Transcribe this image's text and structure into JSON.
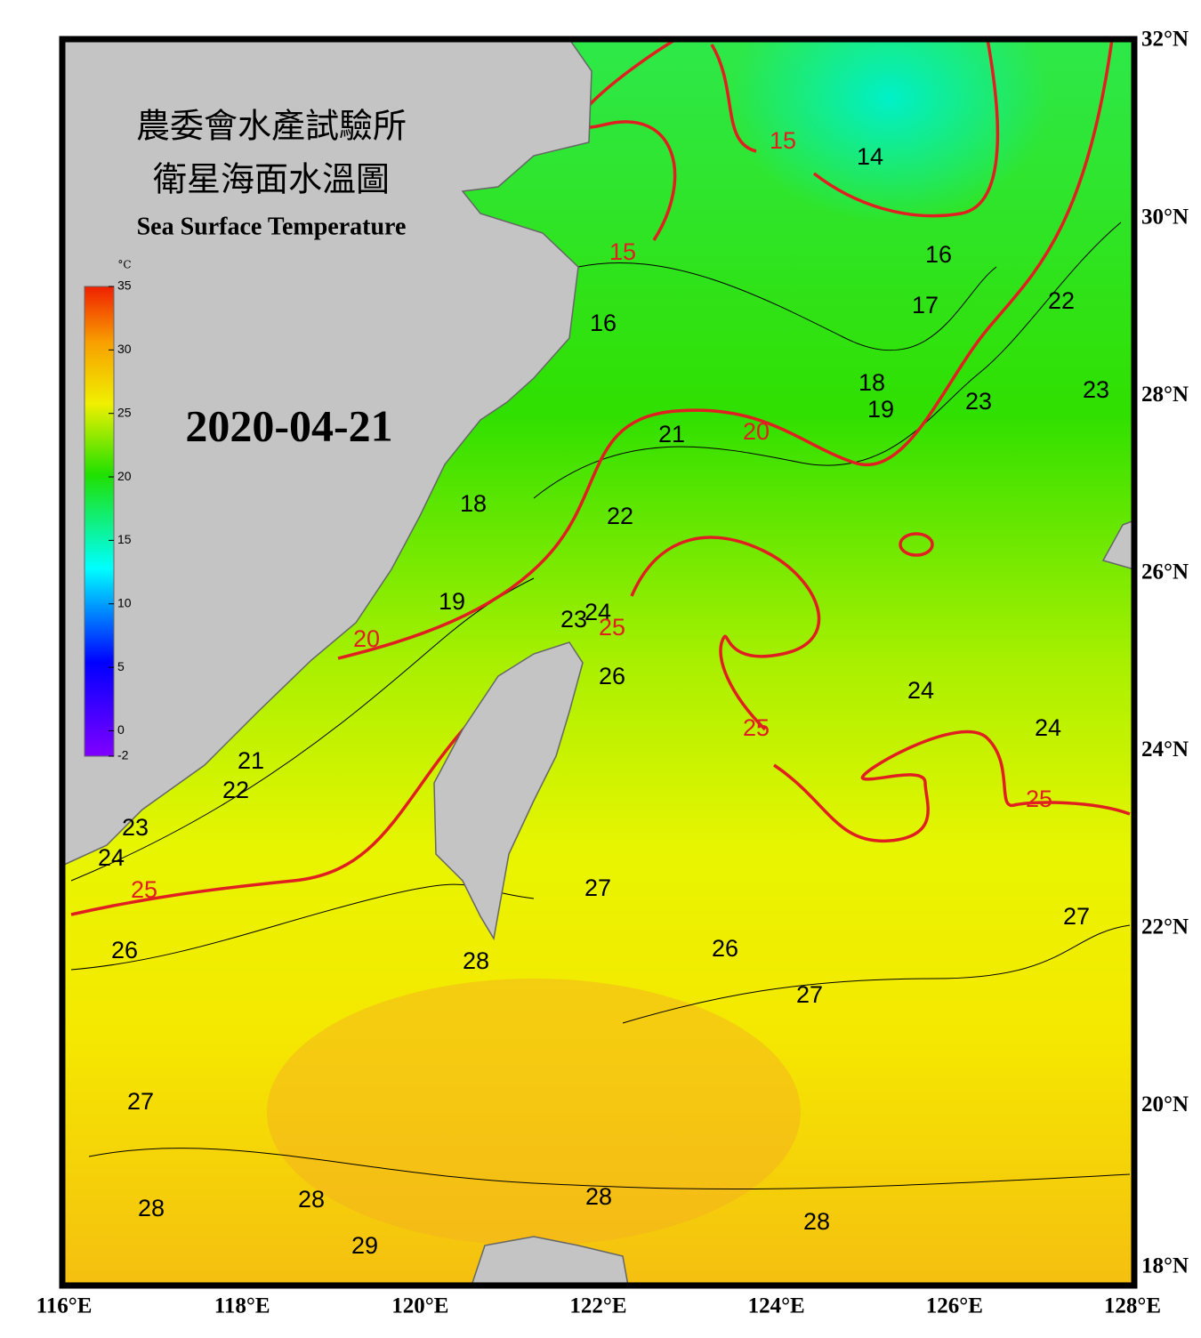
{
  "header": {
    "title_zh_1": "農委會水產試驗所",
    "title_zh_2": "衛星海面水溫圖",
    "title_en": "Sea Surface Temperature",
    "date": "2020-04-21"
  },
  "colorbar": {
    "unit": "°C",
    "range": [
      -2,
      35
    ],
    "ticks": [
      35,
      30,
      25,
      20,
      15,
      10,
      5,
      0,
      -2
    ]
  },
  "map": {
    "lon_ticks": [
      {
        "value": 116,
        "label": "116°E"
      },
      {
        "value": 118,
        "label": "118°E"
      },
      {
        "value": 120,
        "label": "120°E"
      },
      {
        "value": 122,
        "label": "122°E"
      },
      {
        "value": 124,
        "label": "124°E"
      },
      {
        "value": 126,
        "label": "126°E"
      },
      {
        "value": 128,
        "label": "128°E"
      }
    ],
    "lat_ticks": [
      {
        "value": 32,
        "label": "32°N"
      },
      {
        "value": 30,
        "label": "30°N"
      },
      {
        "value": 28,
        "label": "28°N"
      },
      {
        "value": 26,
        "label": "26°N"
      },
      {
        "value": 24,
        "label": "24°N"
      },
      {
        "value": 22,
        "label": "22°N"
      },
      {
        "value": 20,
        "label": "20°N"
      },
      {
        "value": 18,
        "label": "18°N"
      }
    ],
    "contour_labels": [
      15,
      14,
      16,
      17,
      22,
      15,
      16,
      18,
      19,
      23,
      23,
      20,
      21,
      18,
      22,
      19,
      23,
      24,
      25,
      20,
      26,
      24,
      25,
      24,
      21,
      22,
      25,
      23,
      24,
      25,
      27,
      27,
      26,
      26,
      28,
      27,
      27,
      28,
      28,
      28,
      28,
      29
    ]
  }
}
